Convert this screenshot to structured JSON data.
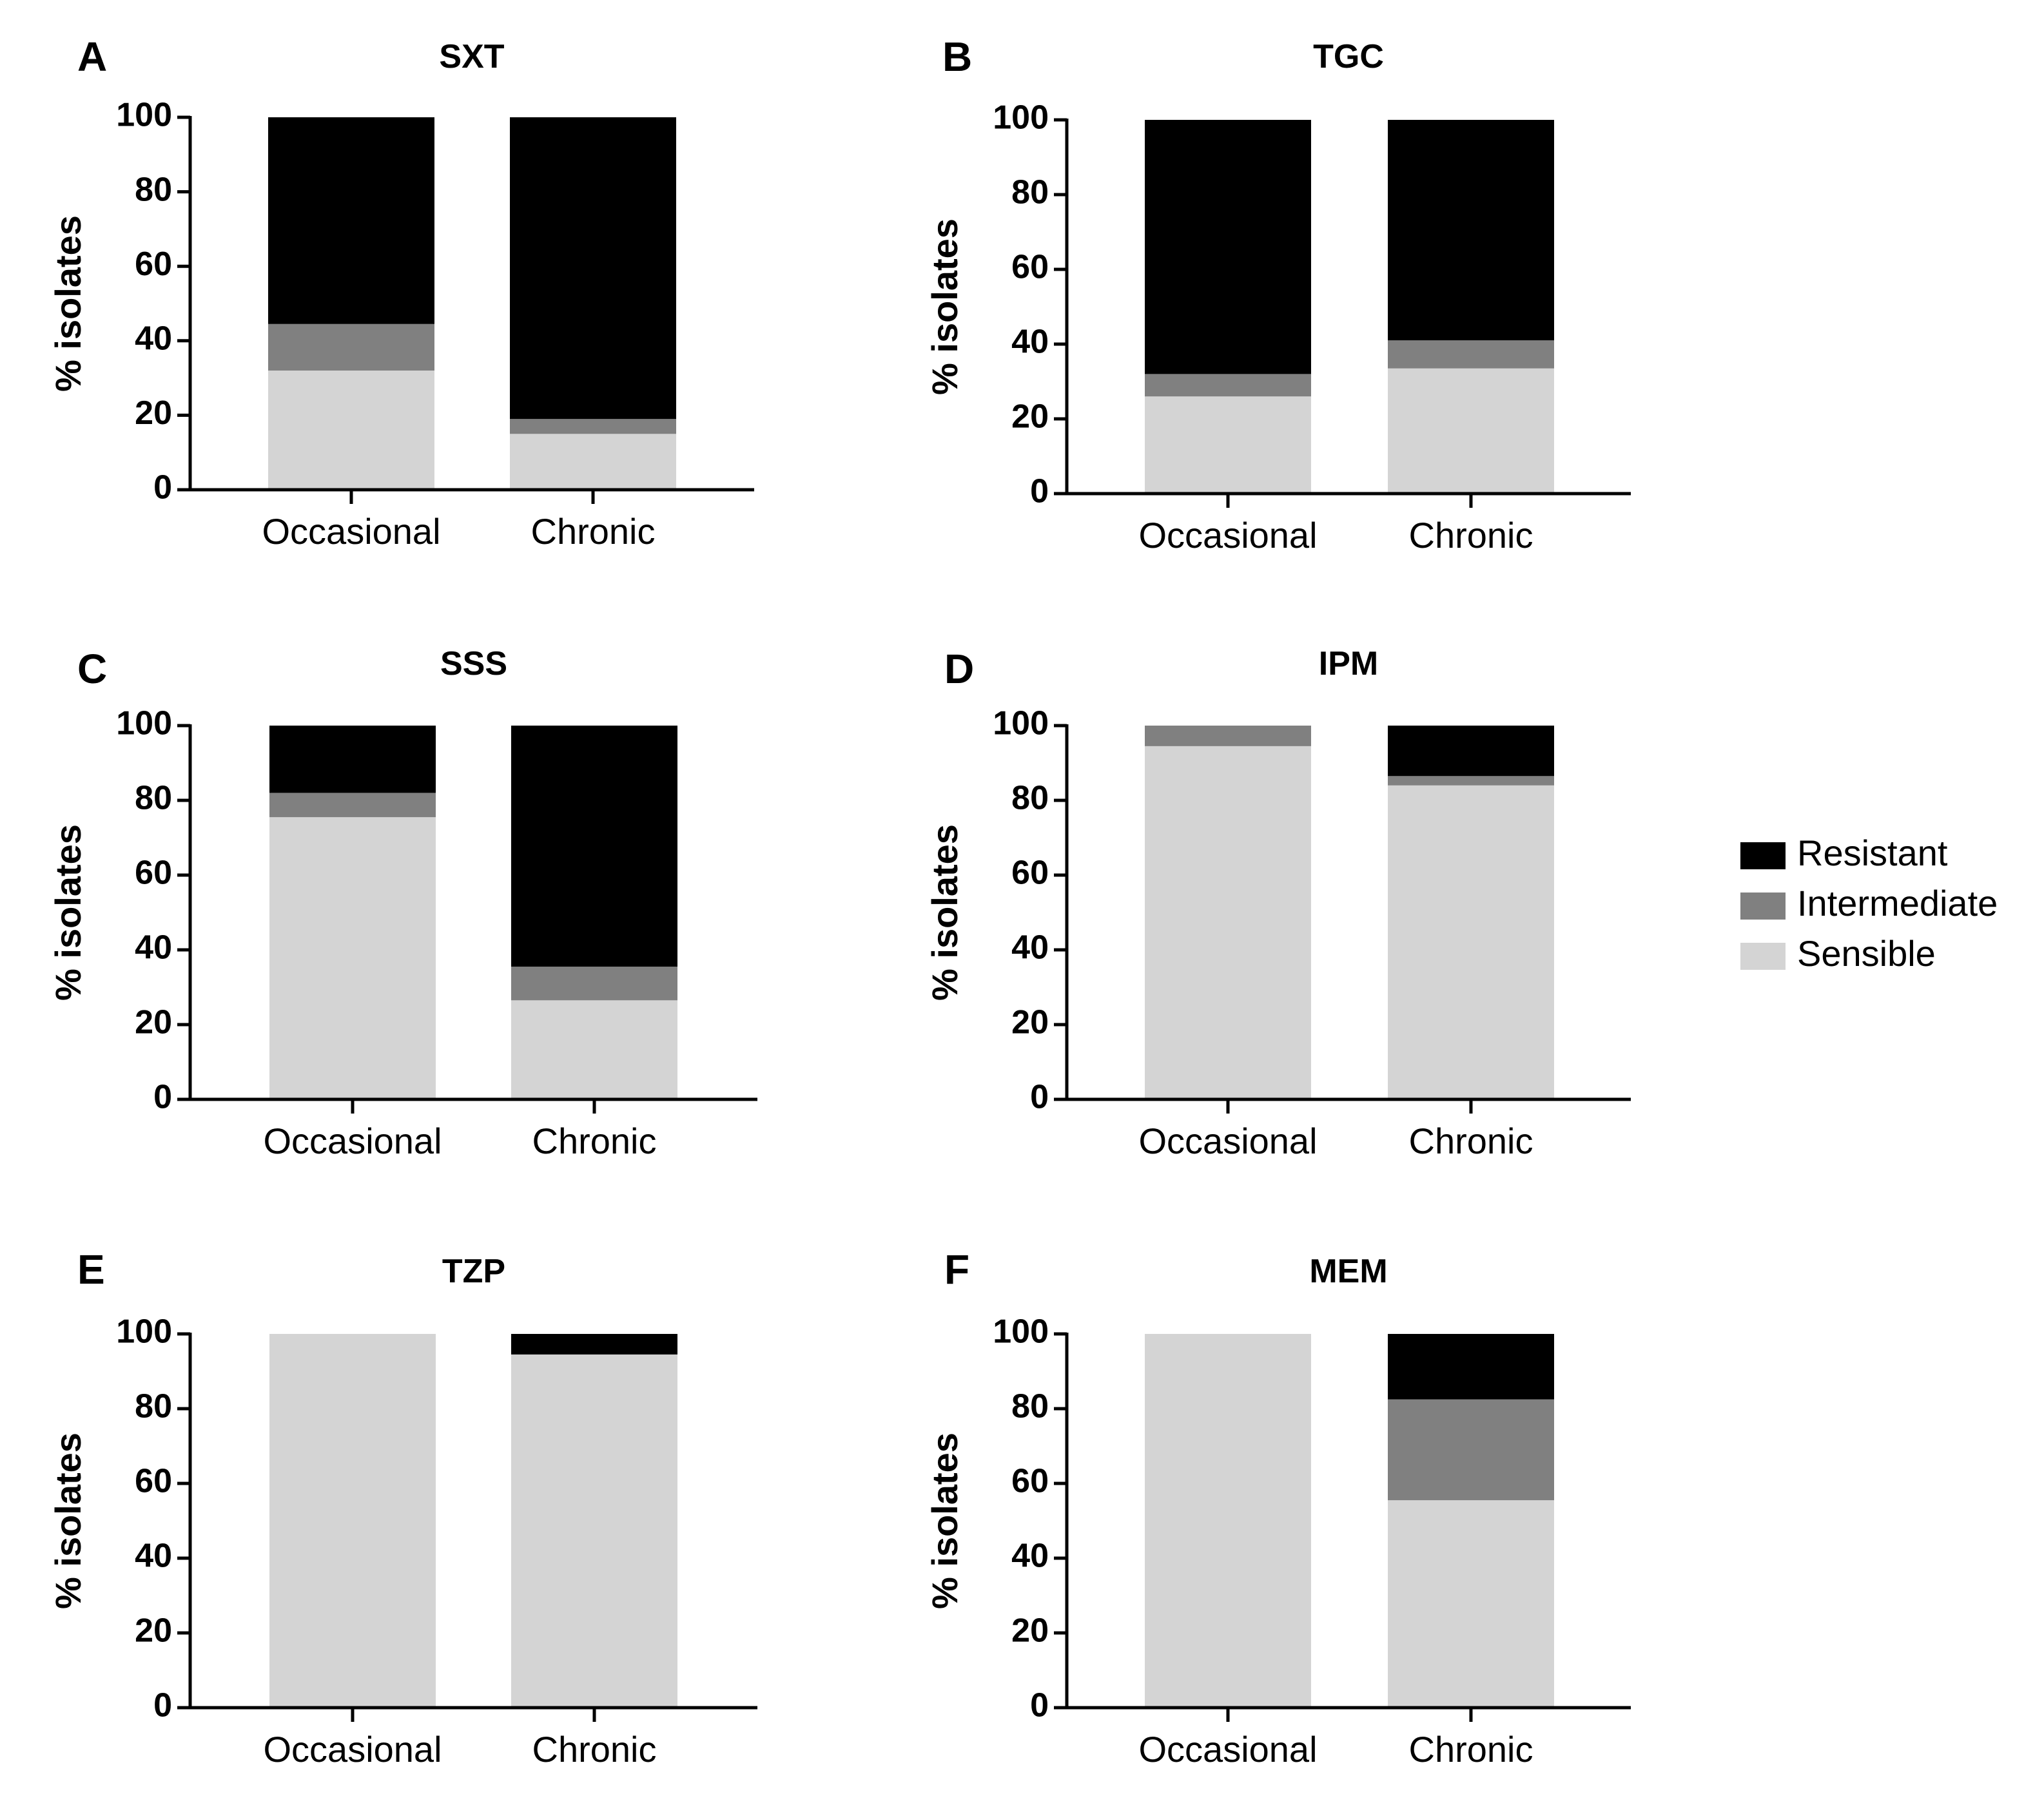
{
  "chart_data": [
    {
      "type": "bar",
      "stacked": true,
      "panel": "A",
      "title": "SXT",
      "categories": [
        "Occasional",
        "Chronic"
      ],
      "ylabel": "% isolates",
      "ylim": [
        0,
        100
      ],
      "yticks": [
        "0",
        "20",
        "40",
        "60",
        "80",
        "100"
      ],
      "series": [
        {
          "name": "Sensible",
          "values": [
            32,
            15
          ]
        },
        {
          "name": "Intermediate",
          "values": [
            12.5,
            4
          ]
        },
        {
          "name": "Resistant",
          "values": [
            55.5,
            81
          ]
        }
      ]
    },
    {
      "type": "bar",
      "stacked": true,
      "panel": "B",
      "title": "TGC",
      "categories": [
        "Occasional",
        "Chronic"
      ],
      "ylabel": "% isolates",
      "ylim": [
        0,
        100
      ],
      "yticks": [
        "0",
        "20",
        "40",
        "60",
        "80",
        "100"
      ],
      "series": [
        {
          "name": "Sensible",
          "values": [
            26,
            33.5
          ]
        },
        {
          "name": "Intermediate",
          "values": [
            6,
            7.5
          ]
        },
        {
          "name": "Resistant",
          "values": [
            68,
            59
          ]
        }
      ]
    },
    {
      "type": "bar",
      "stacked": true,
      "panel": "C",
      "title": "SSS",
      "categories": [
        "Occasional",
        "Chronic"
      ],
      "ylabel": "% isolates",
      "ylim": [
        0,
        100
      ],
      "yticks": [
        "0",
        "20",
        "40",
        "60",
        "80",
        "100"
      ],
      "series": [
        {
          "name": "Sensible",
          "values": [
            75.5,
            26.5
          ]
        },
        {
          "name": "Intermediate",
          "values": [
            6.5,
            9
          ]
        },
        {
          "name": "Resistant",
          "values": [
            18,
            64.5
          ]
        }
      ]
    },
    {
      "type": "bar",
      "stacked": true,
      "panel": "D",
      "title": "IPM",
      "categories": [
        "Occasional",
        "Chronic"
      ],
      "ylabel": "% isolates",
      "ylim": [
        0,
        100
      ],
      "yticks": [
        "0",
        "20",
        "40",
        "60",
        "80",
        "100"
      ],
      "series": [
        {
          "name": "Sensible",
          "values": [
            94.5,
            84
          ]
        },
        {
          "name": "Intermediate",
          "values": [
            5.5,
            2.5
          ]
        },
        {
          "name": "Resistant",
          "values": [
            0,
            13.5
          ]
        }
      ]
    },
    {
      "type": "bar",
      "stacked": true,
      "panel": "E",
      "title": "TZP",
      "categories": [
        "Occasional",
        "Chronic"
      ],
      "ylabel": "% isolates",
      "ylim": [
        0,
        100
      ],
      "yticks": [
        "0",
        "20",
        "40",
        "60",
        "80",
        "100"
      ],
      "series": [
        {
          "name": "Sensible",
          "values": [
            100,
            94.5
          ]
        },
        {
          "name": "Intermediate",
          "values": [
            0,
            0
          ]
        },
        {
          "name": "Resistant",
          "values": [
            0,
            5.5
          ]
        }
      ]
    },
    {
      "type": "bar",
      "stacked": true,
      "panel": "F",
      "title": "MEM",
      "categories": [
        "Occasional",
        "Chronic"
      ],
      "ylabel": "% isolates",
      "ylim": [
        0,
        100
      ],
      "yticks": [
        "0",
        "20",
        "40",
        "60",
        "80",
        "100"
      ],
      "series": [
        {
          "name": "Sensible",
          "values": [
            100,
            55.5
          ]
        },
        {
          "name": "Intermediate",
          "values": [
            0,
            27
          ]
        },
        {
          "name": "Resistant",
          "values": [
            0,
            17.5
          ]
        }
      ]
    }
  ],
  "legend": {
    "items": [
      {
        "label": "Resistant",
        "color": "#000000"
      },
      {
        "label": "Intermediate",
        "color": "#808080"
      },
      {
        "label": "Sensible",
        "color": "#d4d4d4"
      }
    ]
  },
  "colors": {
    "Sensible": "#d4d4d4",
    "Intermediate": "#808080",
    "Resistant": "#000000"
  }
}
